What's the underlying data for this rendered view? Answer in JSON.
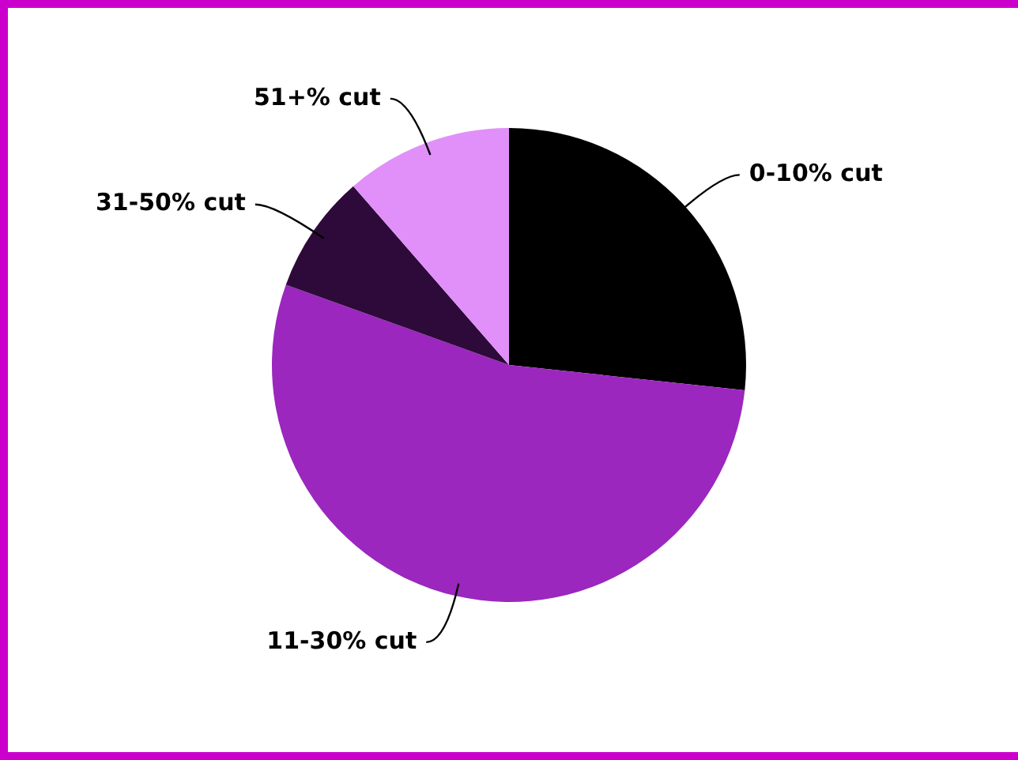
{
  "chart_data": {
    "type": "pie",
    "categories": [
      "0-10% cut",
      "11-30% cut",
      "31-50% cut",
      "51+% cut"
    ],
    "values": [
      26.7,
      53.8,
      8.1,
      11.4
    ],
    "colors": [
      "#000000",
      "#9b27be",
      "#2d0a3a",
      "#e090f8"
    ],
    "legend": false
  }
}
